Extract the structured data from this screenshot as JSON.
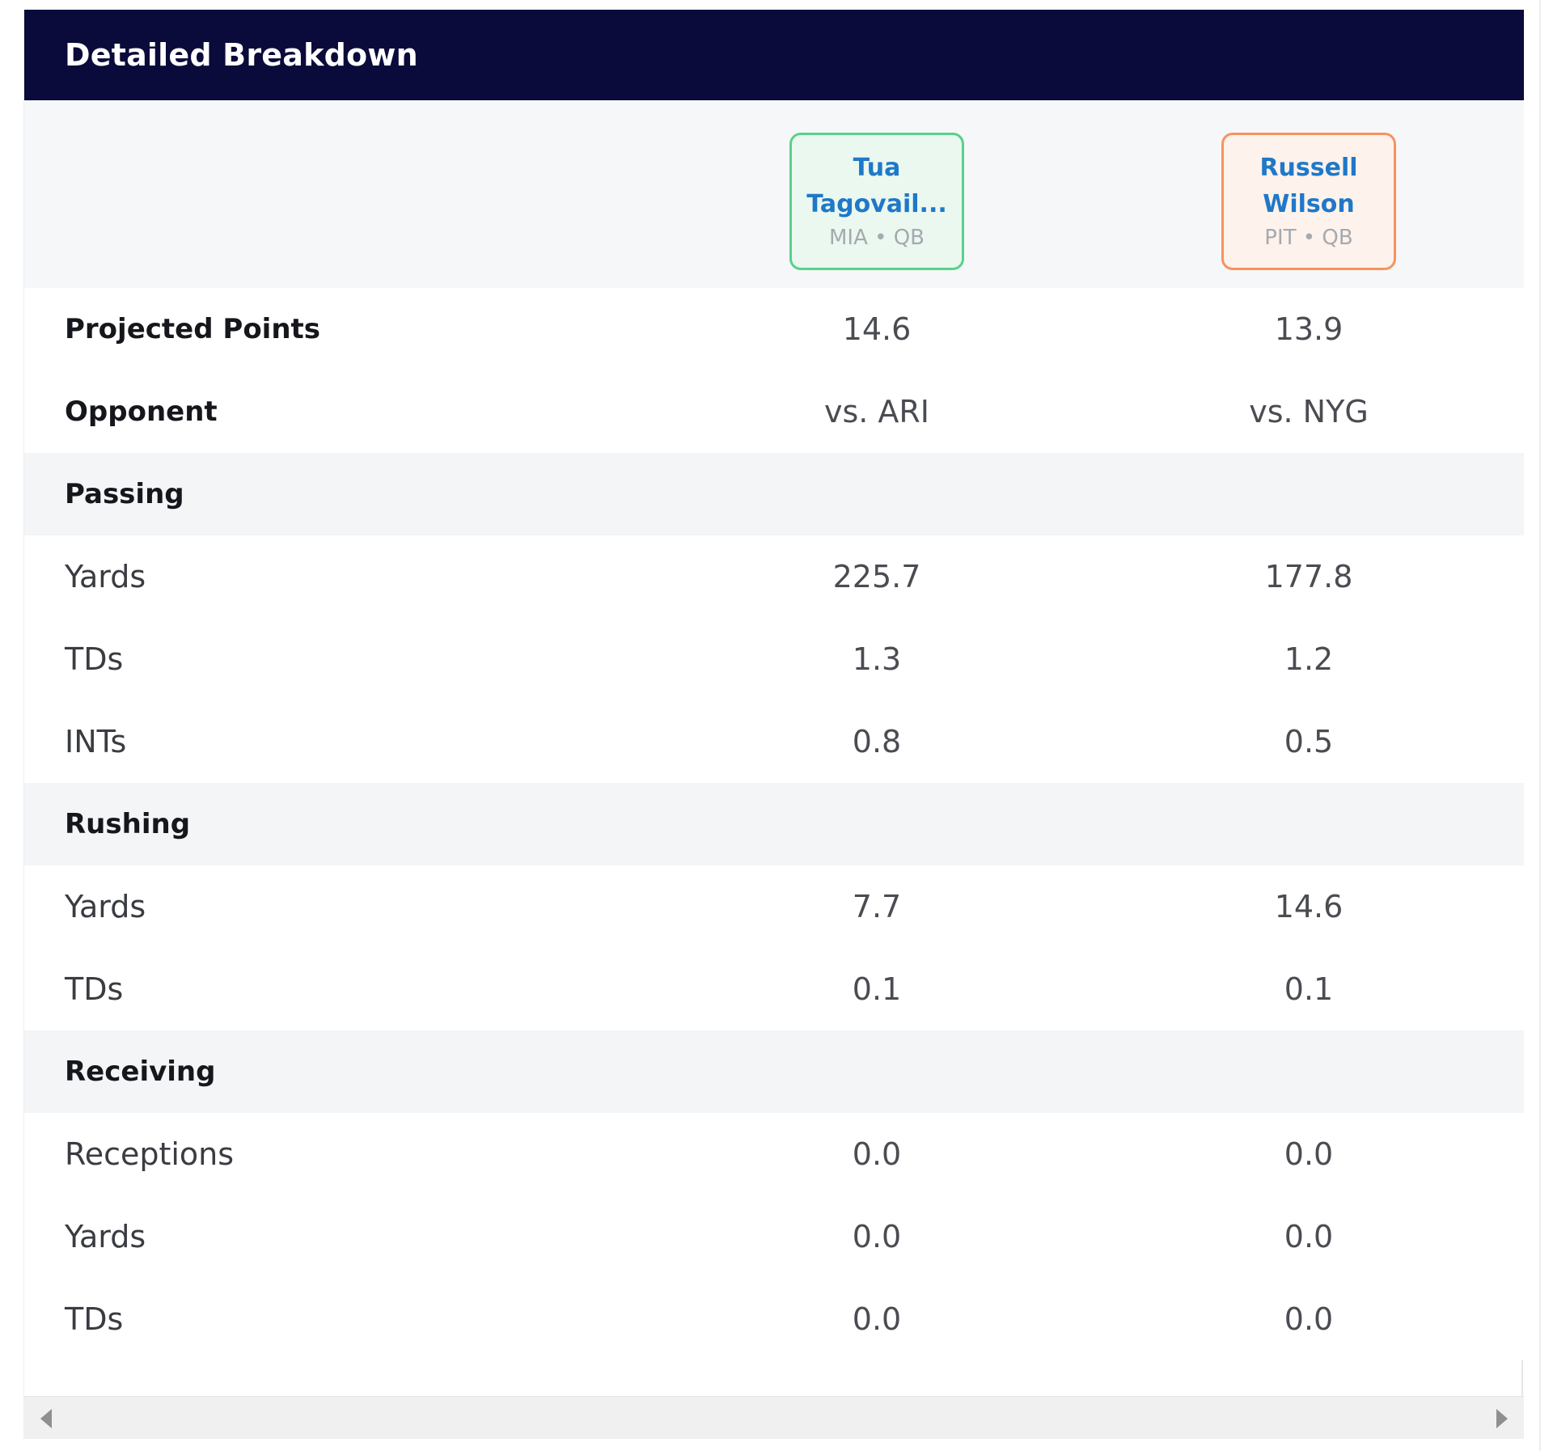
{
  "header": {
    "title": "Detailed Breakdown"
  },
  "players": [
    {
      "name": "Tua\nTagovail...",
      "meta": "MIA • QB",
      "border_color": "#58d18a",
      "bg_color": "#eaf8f0"
    },
    {
      "name": "Russell\nWilson",
      "meta": "PIT • QB",
      "border_color": "#f6935d",
      "bg_color": "#fdf2ec"
    }
  ],
  "rows": {
    "projected_points": {
      "label": "Projected Points",
      "p1": "14.6",
      "p2": "13.9"
    },
    "opponent": {
      "label": "Opponent",
      "p1": "vs. ARI",
      "p2": "vs. NYG"
    },
    "passing_header": {
      "label": "Passing"
    },
    "passing_yards": {
      "label": "Yards",
      "p1": "225.7",
      "p2": "177.8"
    },
    "passing_tds": {
      "label": "TDs",
      "p1": "1.3",
      "p2": "1.2"
    },
    "passing_ints": {
      "label": "INTs",
      "p1": "0.8",
      "p2": "0.5"
    },
    "rushing_header": {
      "label": "Rushing"
    },
    "rushing_yards": {
      "label": "Yards",
      "p1": "7.7",
      "p2": "14.6"
    },
    "rushing_tds": {
      "label": "TDs",
      "p1": "0.1",
      "p2": "0.1"
    },
    "receiving_header": {
      "label": "Receiving"
    },
    "receiving_receptions": {
      "label": "Receptions",
      "p1": "0.0",
      "p2": "0.0"
    },
    "receiving_yards": {
      "label": "Yards",
      "p1": "0.0",
      "p2": "0.0"
    },
    "receiving_tds": {
      "label": "TDs",
      "p1": "0.0",
      "p2": "0.0"
    }
  },
  "colors": {
    "header_bg": "#0a0b3a",
    "player_name": "#1f78c8",
    "section_bg": "#f4f5f7"
  },
  "icons": {
    "scroll_left": "caret-left-icon",
    "scroll_right": "caret-right-icon"
  }
}
